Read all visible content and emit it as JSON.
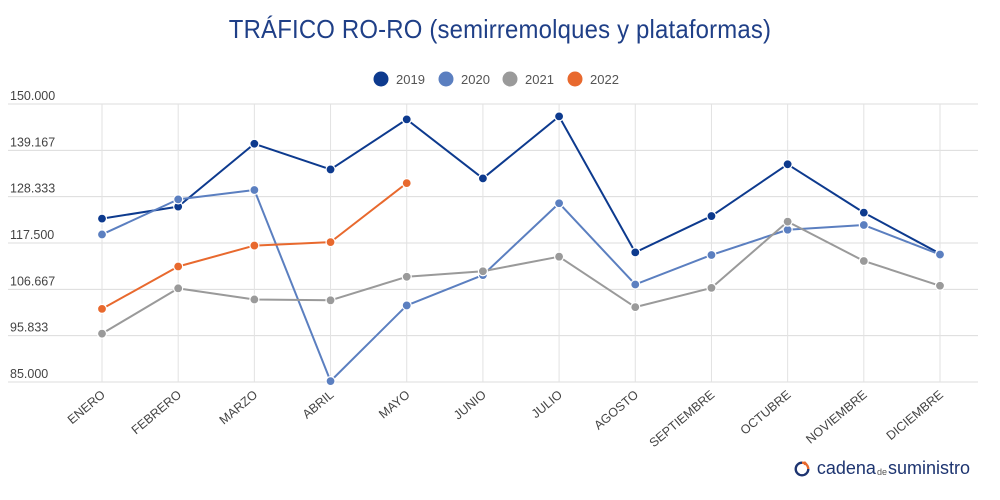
{
  "chart_data": {
    "type": "line",
    "title": "TRÁFICO RO-RO (semirremolques y plataformas)",
    "xlabel": "",
    "ylabel": "",
    "categories": [
      "ENERO",
      "FEBRERO",
      "MARZO",
      "ABRIL",
      "MAYO",
      "JUNIO",
      "JULIO",
      "AGOSTO",
      "SEPTIEMBRE",
      "OCTUBRE",
      "NOVIEMBRE",
      "DICIEMBRE"
    ],
    "y_ticks": [
      "150.000",
      "139.167",
      "128.333",
      "117.500",
      "106.667",
      "95.833",
      "85.000"
    ],
    "ylim": [
      85000,
      150000
    ],
    "grid": true,
    "legend_position": "top-center",
    "series": [
      {
        "name": "2019",
        "color": "#0d3a8e",
        "values": [
          123200,
          126000,
          140700,
          134700,
          146400,
          132600,
          147100,
          115300,
          123800,
          135900,
          124600,
          115000
        ]
      },
      {
        "name": "2020",
        "color": "#5b7fc0",
        "values": [
          119500,
          127700,
          129900,
          85200,
          102900,
          110000,
          126800,
          107800,
          114700,
          120600,
          121700,
          114800
        ]
      },
      {
        "name": "2021",
        "color": "#9a9a9a",
        "values": [
          96300,
          106900,
          104300,
          104100,
          109600,
          110900,
          114300,
          102500,
          107000,
          122500,
          113300,
          107500
        ]
      },
      {
        "name": "2022",
        "color": "#e8692e",
        "values": [
          102100,
          112000,
          116900,
          117700,
          131500,
          null,
          null,
          null,
          null,
          null,
          null,
          null
        ]
      }
    ]
  },
  "brand": {
    "part1": "cadena",
    "part2": "de",
    "part3": "suministro"
  }
}
